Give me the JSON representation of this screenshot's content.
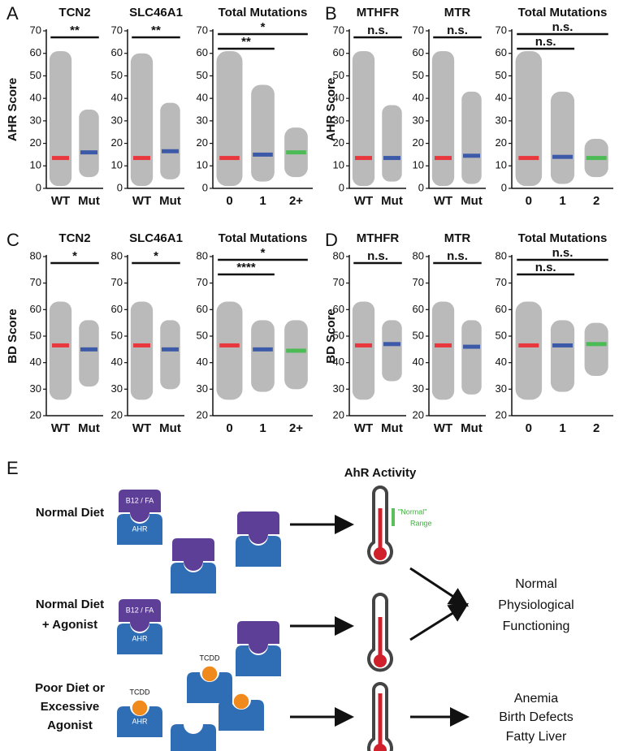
{
  "panel_labels": [
    "A",
    "B",
    "C",
    "D"
  ],
  "chart_data": [
    {
      "type": "strip",
      "title": "TCN2",
      "ylabel": "AHR Score",
      "categories": [
        "WT",
        "Mut"
      ],
      "colors": [
        "#e8383d",
        "#3c5aa8"
      ],
      "values": [
        13.5,
        16
      ],
      "spread": [
        [
          1,
          61
        ],
        [
          5,
          35
        ]
      ],
      "ylim": [
        0,
        70
      ],
      "yticks": [
        0,
        10,
        20,
        30,
        40,
        50,
        60,
        70
      ],
      "significance": [
        {
          "pair": [
            0,
            1
          ],
          "label": "**"
        }
      ]
    },
    {
      "type": "strip",
      "title": "SLC46A1",
      "categories": [
        "WT",
        "Mut"
      ],
      "colors": [
        "#e8383d",
        "#3c5aa8"
      ],
      "values": [
        13.5,
        16.5
      ],
      "spread": [
        [
          1,
          60
        ],
        [
          4,
          38
        ]
      ],
      "ylim": [
        0,
        70
      ],
      "yticks": [
        0,
        10,
        20,
        30,
        40,
        50,
        60,
        70
      ],
      "significance": [
        {
          "pair": [
            0,
            1
          ],
          "label": "**"
        }
      ]
    },
    {
      "type": "strip",
      "title": "Total Mutations",
      "categories": [
        "0",
        "1",
        "2+"
      ],
      "colors": [
        "#e8383d",
        "#3c5aa8",
        "#4cbb55"
      ],
      "values": [
        13.5,
        15,
        16
      ],
      "spread": [
        [
          1,
          61
        ],
        [
          3,
          46
        ],
        [
          5,
          27
        ]
      ],
      "ylim": [
        0,
        70
      ],
      "yticks": [
        0,
        10,
        20,
        30,
        40,
        50,
        60,
        70
      ],
      "significance": [
        {
          "pair": [
            0,
            2
          ],
          "label": "*"
        },
        {
          "pair": [
            0,
            1
          ],
          "label": "**"
        }
      ]
    },
    {
      "type": "strip",
      "title": "MTHFR",
      "ylabel": "AHR Score",
      "categories": [
        "WT",
        "Mut"
      ],
      "colors": [
        "#e8383d",
        "#3c5aa8"
      ],
      "values": [
        13.5,
        13.5
      ],
      "spread": [
        [
          1,
          61
        ],
        [
          3,
          37
        ]
      ],
      "ylim": [
        0,
        70
      ],
      "yticks": [
        0,
        10,
        20,
        30,
        40,
        50,
        60,
        70
      ],
      "significance": [
        {
          "pair": [
            0,
            1
          ],
          "label": "n.s."
        }
      ]
    },
    {
      "type": "strip",
      "title": "MTR",
      "categories": [
        "WT",
        "Mut"
      ],
      "colors": [
        "#e8383d",
        "#3c5aa8"
      ],
      "values": [
        13.5,
        14.5
      ],
      "spread": [
        [
          1,
          61
        ],
        [
          2,
          43
        ]
      ],
      "ylim": [
        0,
        70
      ],
      "yticks": [
        0,
        10,
        20,
        30,
        40,
        50,
        60,
        70
      ],
      "significance": [
        {
          "pair": [
            0,
            1
          ],
          "label": "n.s."
        }
      ]
    },
    {
      "type": "strip",
      "title": "Total Mutations",
      "categories": [
        "0",
        "1",
        "2"
      ],
      "colors": [
        "#e8383d",
        "#3c5aa8",
        "#4cbb55"
      ],
      "values": [
        13.5,
        14,
        13.5
      ],
      "spread": [
        [
          1,
          61
        ],
        [
          2,
          43
        ],
        [
          5,
          22
        ]
      ],
      "ylim": [
        0,
        70
      ],
      "yticks": [
        0,
        10,
        20,
        30,
        40,
        50,
        60,
        70
      ],
      "significance": [
        {
          "pair": [
            0,
            2
          ],
          "label": "n.s."
        },
        {
          "pair": [
            0,
            1
          ],
          "label": "n.s."
        }
      ]
    },
    {
      "type": "strip",
      "title": "TCN2",
      "ylabel": "BD Score",
      "categories": [
        "WT",
        "Mut"
      ],
      "colors": [
        "#e8383d",
        "#3c5aa8"
      ],
      "values": [
        46.5,
        45
      ],
      "spread": [
        [
          26,
          63
        ],
        [
          31,
          56
        ]
      ],
      "ylim": [
        20,
        80
      ],
      "yticks": [
        20,
        30,
        40,
        50,
        60,
        70,
        80
      ],
      "significance": [
        {
          "pair": [
            0,
            1
          ],
          "label": "*"
        }
      ]
    },
    {
      "type": "strip",
      "title": "SLC46A1",
      "categories": [
        "WT",
        "Mut"
      ],
      "colors": [
        "#e8383d",
        "#3c5aa8"
      ],
      "values": [
        46.5,
        45
      ],
      "spread": [
        [
          26,
          63
        ],
        [
          30,
          56
        ]
      ],
      "ylim": [
        20,
        80
      ],
      "yticks": [
        20,
        30,
        40,
        50,
        60,
        70,
        80
      ],
      "significance": [
        {
          "pair": [
            0,
            1
          ],
          "label": "*"
        }
      ]
    },
    {
      "type": "strip",
      "title": "Total Mutations",
      "categories": [
        "0",
        "1",
        "2+"
      ],
      "colors": [
        "#e8383d",
        "#3c5aa8",
        "#4cbb55"
      ],
      "values": [
        46.5,
        45,
        44.5
      ],
      "spread": [
        [
          26,
          63
        ],
        [
          29,
          56
        ],
        [
          30,
          56
        ]
      ],
      "ylim": [
        20,
        80
      ],
      "yticks": [
        20,
        30,
        40,
        50,
        60,
        70,
        80
      ],
      "significance": [
        {
          "pair": [
            0,
            2
          ],
          "label": "*"
        },
        {
          "pair": [
            0,
            1
          ],
          "label": "****"
        }
      ]
    },
    {
      "type": "strip",
      "title": "MTHFR",
      "ylabel": "BD Score",
      "categories": [
        "WT",
        "Mut"
      ],
      "colors": [
        "#e8383d",
        "#3c5aa8"
      ],
      "values": [
        46.5,
        47
      ],
      "spread": [
        [
          26,
          63
        ],
        [
          33,
          56
        ]
      ],
      "ylim": [
        20,
        80
      ],
      "yticks": [
        20,
        30,
        40,
        50,
        60,
        70,
        80
      ],
      "significance": [
        {
          "pair": [
            0,
            1
          ],
          "label": "n.s."
        }
      ]
    },
    {
      "type": "strip",
      "title": "MTR",
      "categories": [
        "WT",
        "Mut"
      ],
      "colors": [
        "#e8383d",
        "#3c5aa8"
      ],
      "values": [
        46.5,
        46
      ],
      "spread": [
        [
          26,
          63
        ],
        [
          28,
          56
        ]
      ],
      "ylim": [
        20,
        80
      ],
      "yticks": [
        20,
        30,
        40,
        50,
        60,
        70,
        80
      ],
      "significance": [
        {
          "pair": [
            0,
            1
          ],
          "label": "n.s."
        }
      ]
    },
    {
      "type": "strip",
      "title": "Total Mutations",
      "categories": [
        "0",
        "1",
        "2"
      ],
      "colors": [
        "#e8383d",
        "#3c5aa8",
        "#4cbb55"
      ],
      "values": [
        46.5,
        46.5,
        47
      ],
      "spread": [
        [
          26,
          63
        ],
        [
          29,
          56
        ],
        [
          35,
          55
        ]
      ],
      "ylim": [
        20,
        80
      ],
      "yticks": [
        20,
        30,
        40,
        50,
        60,
        70,
        80
      ],
      "significance": [
        {
          "pair": [
            0,
            2
          ],
          "label": "n.s."
        },
        {
          "pair": [
            0,
            1
          ],
          "label": "n.s."
        }
      ]
    }
  ],
  "diagram": {
    "label": "E",
    "heading": "AhR Activity",
    "rows": [
      {
        "label": [
          "Normal Diet"
        ]
      },
      {
        "label": [
          "Normal Diet",
          "+ Agonist"
        ]
      },
      {
        "label": [
          "Poor Diet or",
          "Excessive",
          "Agonist"
        ]
      }
    ],
    "cofactor": "B12 / FA",
    "receptor": "AHR",
    "agonist": "TCDD",
    "range_note": [
      "\"Normal\"",
      "Range"
    ],
    "outcomes": [
      [
        "Normal",
        "Physiological",
        "Functioning"
      ],
      [
        "Anemia",
        "Birth Defects",
        "Fatty Liver"
      ]
    ]
  }
}
